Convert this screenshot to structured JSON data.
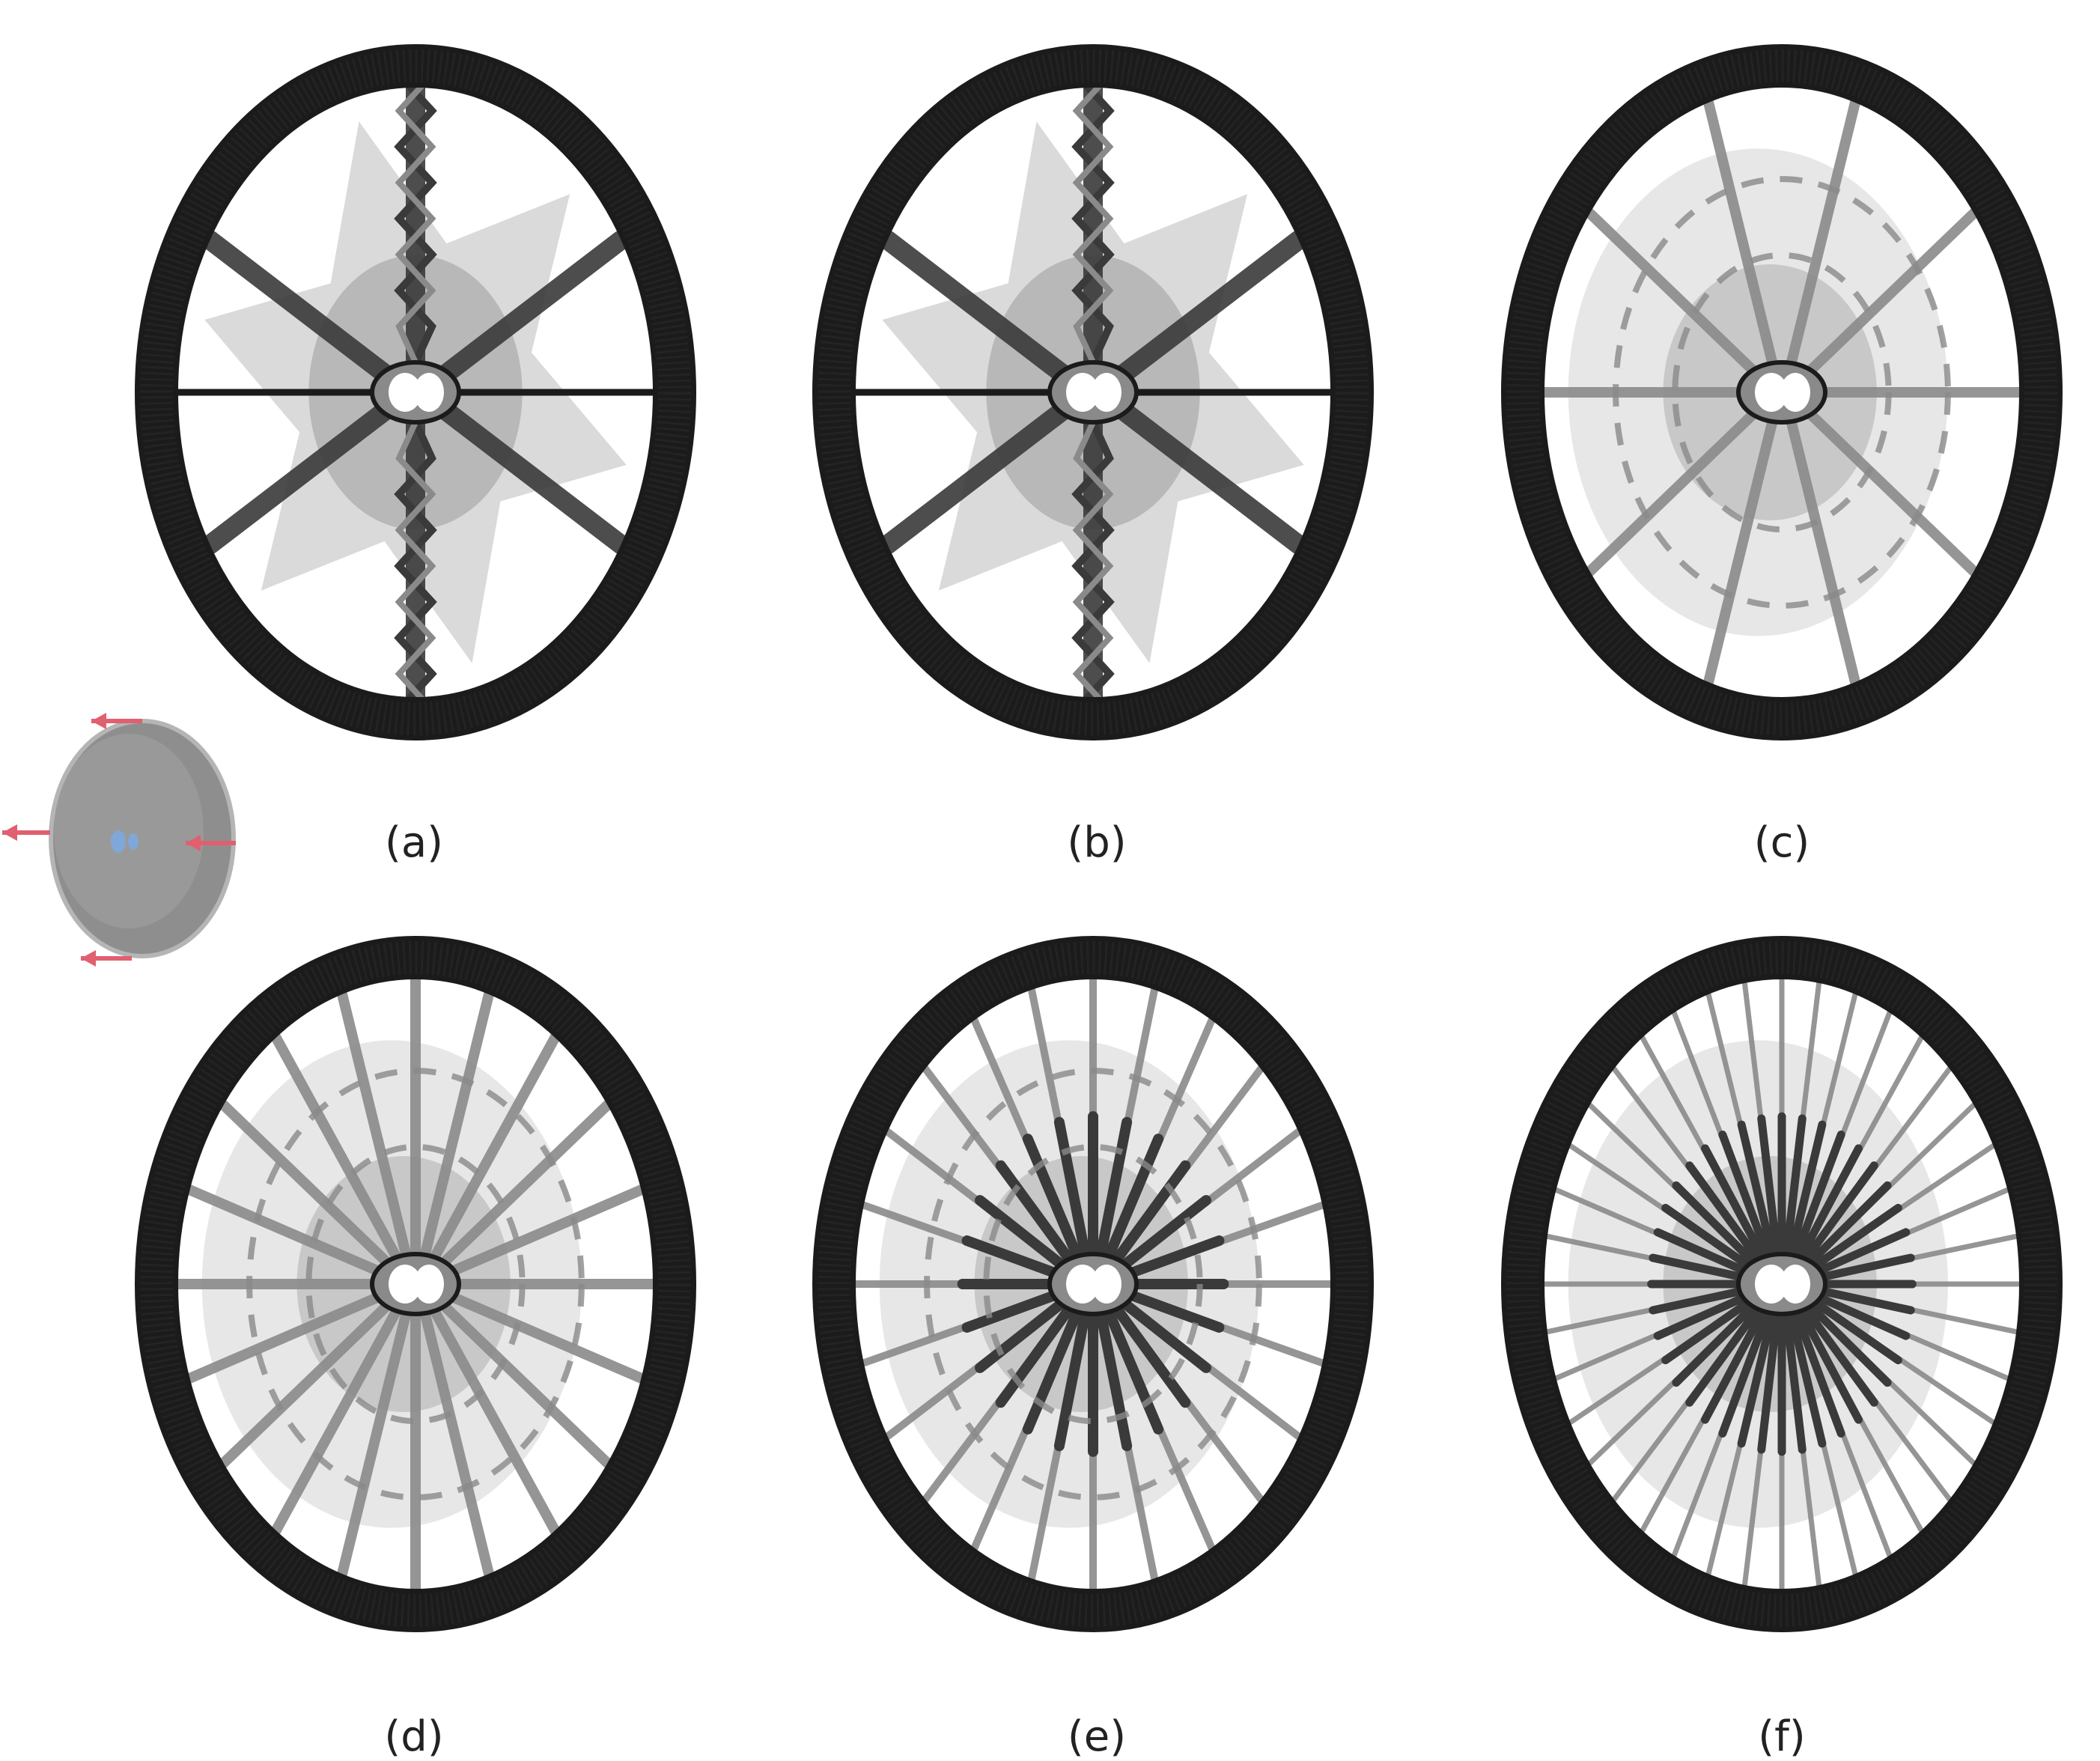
{
  "figure": {
    "panels": [
      {
        "id": "a",
        "caption": "(a)",
        "spokes": 6,
        "twisted": true,
        "style": "star"
      },
      {
        "id": "b",
        "caption": "(b)",
        "spokes": 6,
        "twisted": true,
        "style": "star"
      },
      {
        "id": "c",
        "caption": "(c)",
        "spokes": 10,
        "twisted": false,
        "style": "web"
      },
      {
        "id": "d",
        "caption": "(d)",
        "spokes": 20,
        "twisted": false,
        "style": "web"
      },
      {
        "id": "e",
        "caption": "(e)",
        "spokes": 24,
        "twisted": false,
        "style": "radial"
      },
      {
        "id": "f",
        "caption": "(f)",
        "spokes": 40,
        "twisted": false,
        "style": "dense"
      }
    ],
    "colors": {
      "rim": "#1b1b1b",
      "member_dark": "#3a3a3a",
      "member_mid": "#8a8a8a",
      "membrane": "#d4d4d4",
      "membrane_dark": "#a9a9a9",
      "inset_body": "#8e8e8e",
      "load_arrow": "#e06070",
      "support": "#7fa8d8"
    },
    "inset": {
      "label": "load-case-wheel",
      "arrows": 4
    }
  }
}
